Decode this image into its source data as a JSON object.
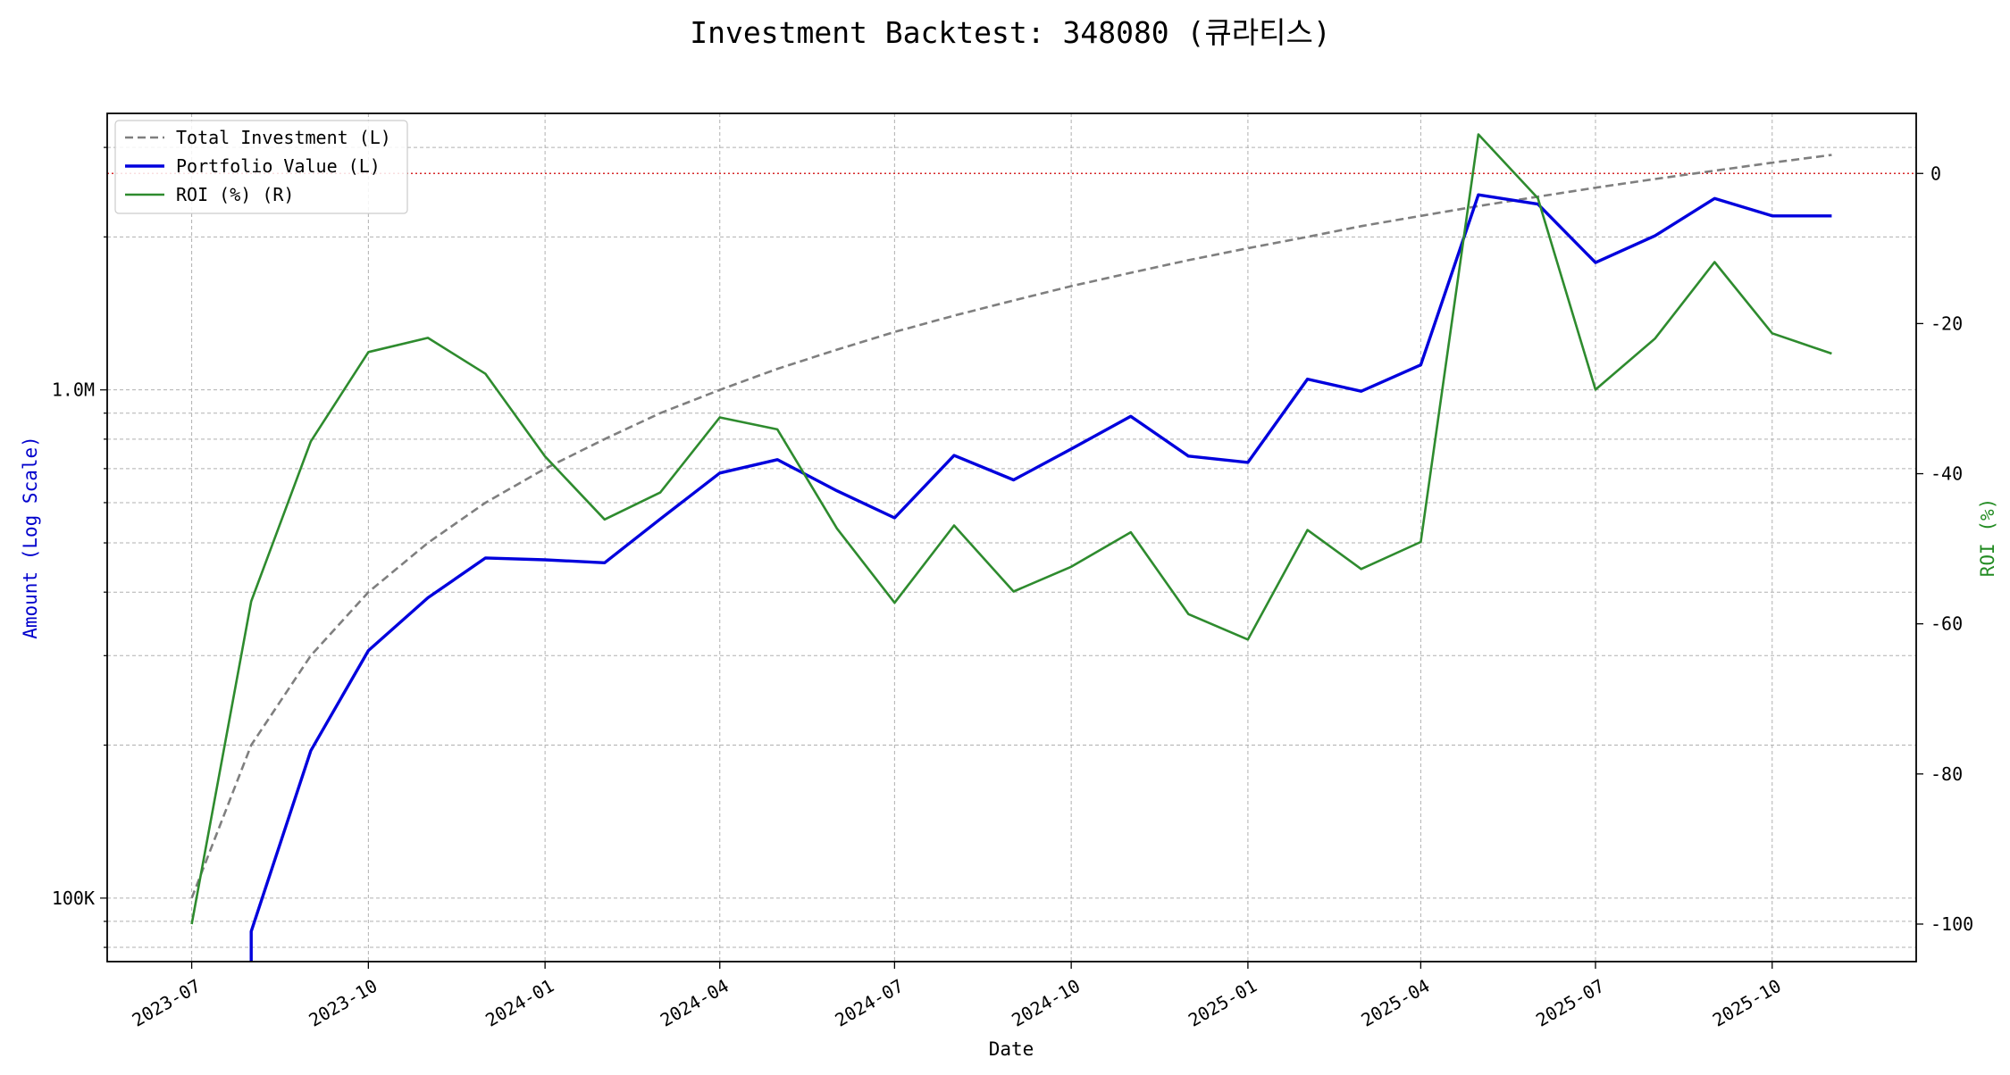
{
  "chart_data": {
    "type": "line",
    "title": "Investment Backtest: 348080 (큐라티스)",
    "xlabel": "Date",
    "ylabel_left": "Amount (Log Scale)",
    "ylabel_right": "ROI (%)",
    "left_axis_scale": "log",
    "left_ylim": [
      75000,
      3500000
    ],
    "right_ylim": [
      -105,
      8
    ],
    "xlim": [
      "2023-05-18",
      "2025-12-15"
    ],
    "x_ticks": [
      "2023-07",
      "2023-10",
      "2024-01",
      "2024-04",
      "2024-07",
      "2024-10",
      "2025-01",
      "2025-04",
      "2025-07",
      "2025-10"
    ],
    "left_ticks": [
      {
        "value": 100000,
        "label": "100K"
      },
      {
        "value": 1000000,
        "label": "1.0M"
      }
    ],
    "right_ticks": [
      0,
      -20,
      -40,
      -60,
      -80,
      -100
    ],
    "reference_line": {
      "axis": "right",
      "value": 0,
      "color": "#d62728",
      "style": "dotted"
    },
    "grid": true,
    "legend_position": "upper-left",
    "colors": {
      "total_investment": "#7f7f7f",
      "portfolio_value": "#0000dd",
      "roi": "#2e8b2e",
      "left_axis": "#0000cc",
      "right_axis": "#228b22"
    },
    "x": [
      "2023-07-01",
      "2023-08-01",
      "2023-09-01",
      "2023-10-01",
      "2023-11-01",
      "2023-12-01",
      "2024-01-01",
      "2024-02-01",
      "2024-03-01",
      "2024-04-01",
      "2024-05-01",
      "2024-06-01",
      "2024-07-01",
      "2024-08-01",
      "2024-09-01",
      "2024-10-01",
      "2024-11-01",
      "2024-12-01",
      "2025-01-01",
      "2025-02-01",
      "2025-03-01",
      "2025-04-01",
      "2025-05-01",
      "2025-06-01",
      "2025-07-01",
      "2025-08-01",
      "2025-09-01",
      "2025-10-01",
      "2025-11-01"
    ],
    "series": [
      {
        "name": "Total Investment (L)",
        "axis": "left",
        "style": "dashed",
        "color_key": "total_investment",
        "values": [
          100000,
          200000,
          300000,
          400000,
          500000,
          600000,
          700000,
          800000,
          900000,
          1000000,
          1100000,
          1200000,
          1300000,
          1400000,
          1500000,
          1600000,
          1700000,
          1800000,
          1900000,
          2000000,
          2100000,
          2200000,
          2300000,
          2400000,
          2500000,
          2600000,
          2700000,
          2800000,
          2900000
        ]
      },
      {
        "name": "Portfolio Value (L)",
        "axis": "left",
        "style": "solid",
        "color_key": "portfolio_value",
        "values": [
          null,
          86000,
          195000,
          307000,
          390000,
          467000,
          463000,
          457000,
          557000,
          686000,
          729000,
          633000,
          560000,
          743000,
          665000,
          765000,
          887000,
          741000,
          720000,
          1050000,
          994000,
          1120000,
          2420000,
          2320000,
          1780000,
          2010000,
          2380000,
          2200000,
          2200000
        ]
      },
      {
        "name": "ROI (%) (R)",
        "axis": "right",
        "style": "solid",
        "color_key": "roi",
        "values": [
          -100,
          -57,
          -35.7,
          -23.8,
          -21.9,
          -26.7,
          -37.7,
          -46.1,
          -42.5,
          -32.5,
          -34.1,
          -47.3,
          -57.2,
          -46.9,
          -55.7,
          -52.4,
          -47.8,
          -58.7,
          -62.1,
          -47.5,
          -52.7,
          -49.1,
          5.2,
          -3.3,
          -28.8,
          -22.0,
          -11.8,
          -21.3,
          -24.0
        ]
      }
    ]
  }
}
